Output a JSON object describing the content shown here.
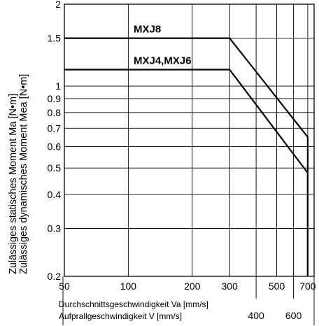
{
  "chart_data": {
    "type": "line",
    "title": "",
    "y_scale": "log",
    "x_scale": "log",
    "ylim": [
      0.2,
      2
    ],
    "xlim": [
      50,
      750
    ],
    "grid": true,
    "ylabel_lines": [
      "Zulässiges statisches Moment Ma [N•m]",
      "Zulässiges dynamisches Moment Mea [N•m]"
    ],
    "xlabel_lines": [
      "Durchschnittsgeschwindigkeit Va [mm/s]",
      "Aufprallgeschwindigkeit V [mm/s]"
    ],
    "y_ticks": [
      {
        "value": 0.2,
        "label": "0.2"
      },
      {
        "value": 0.3,
        "label": "0.3"
      },
      {
        "value": 0.4,
        "label": "0.4"
      },
      {
        "value": 0.5,
        "label": "0.5"
      },
      {
        "value": 0.6,
        "label": "0.6"
      },
      {
        "value": 0.7,
        "label": "0.7"
      },
      {
        "value": 0.8,
        "label": "0.8"
      },
      {
        "value": 0.9,
        "label": "0.9"
      },
      {
        "value": 1,
        "label": "1"
      },
      {
        "value": 1.5,
        "label": "1.5"
      },
      {
        "value": 2,
        "label": "2"
      }
    ],
    "x_ticks_va": [
      {
        "value": 50,
        "label": "50"
      },
      {
        "value": 100,
        "label": "100"
      },
      {
        "value": 200,
        "label": "200"
      },
      {
        "value": 300,
        "label": "300"
      },
      {
        "value": 500,
        "label": "500"
      },
      {
        "value": 700,
        "label": "700"
      }
    ],
    "x_ticks_v": [
      {
        "value": 400,
        "label": "400"
      },
      {
        "value": 600,
        "label": "600"
      }
    ],
    "series": [
      {
        "name": "MXJ8",
        "x": [
          50,
          300,
          700,
          700
        ],
        "y": [
          1.5,
          1.5,
          0.65,
          0.2
        ]
      },
      {
        "name": "MXJ4,MXJ6",
        "x": [
          50,
          300,
          700,
          700
        ],
        "y": [
          1.15,
          1.15,
          0.48,
          0.2
        ]
      }
    ]
  }
}
